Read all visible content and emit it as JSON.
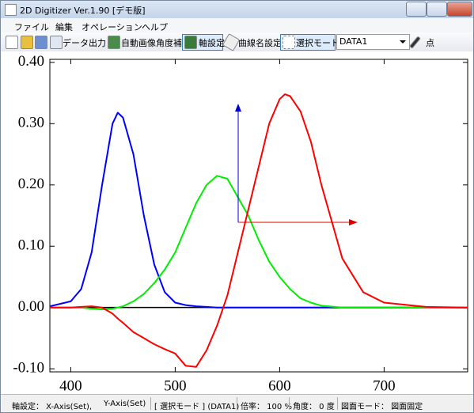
{
  "window": {
    "title": "2D Digitizer Ver.1.90 [デモ版]"
  },
  "menu": [
    "ファイル",
    "編集",
    "オペレーション",
    "ヘルプ"
  ],
  "toolbar": {
    "export": "データ出力",
    "auto_angle": "自動画像角度補正",
    "axis_setting": "軸設定",
    "curve_name": "曲線名設定",
    "select_mode": "選択モード",
    "dataset": "DATA1",
    "point": "点"
  },
  "status_bar": [
    "軸設定： X-Axis(Set),",
    "Y-Axis(Set)",
    "[ 選択モード ] (DATA1)",
    "倍率： 100 %",
    "角度： 0 度",
    "図面モード： 図面固定"
  ],
  "chart_data": {
    "type": "line",
    "x": [
      380,
      400,
      410,
      420,
      430,
      440,
      445,
      450,
      460,
      470,
      480,
      490,
      500,
      510,
      520,
      530,
      540,
      550,
      560,
      570,
      580,
      590,
      600,
      605,
      610,
      620,
      630,
      640,
      660,
      680,
      700,
      740,
      780
    ],
    "series": [
      {
        "color": "#0000ff",
        "values": [
          0.002,
          0.01,
          0.03,
          0.09,
          0.2,
          0.3,
          0.318,
          0.31,
          0.25,
          0.15,
          0.07,
          0.025,
          0.008,
          0.004,
          0.002,
          0.001,
          0,
          0,
          0,
          0,
          0,
          0,
          0,
          0,
          0,
          0,
          0,
          0,
          0,
          0,
          0,
          0,
          0
        ]
      },
      {
        "color": "#00ee00",
        "values": [
          0,
          0,
          0,
          -0.002,
          -0.003,
          -0.002,
          0,
          0.002,
          0.01,
          0.022,
          0.04,
          0.062,
          0.09,
          0.13,
          0.17,
          0.2,
          0.215,
          0.21,
          0.18,
          0.15,
          0.11,
          0.075,
          0.05,
          0.04,
          0.03,
          0.015,
          0.008,
          0.003,
          0,
          0,
          0,
          0,
          0
        ]
      },
      {
        "color": "#ff0000",
        "values": [
          0,
          0,
          0.001,
          0.002,
          0,
          -0.01,
          -0.018,
          -0.025,
          -0.04,
          -0.05,
          -0.06,
          -0.068,
          -0.075,
          -0.095,
          -0.097,
          -0.07,
          -0.03,
          0.02,
          0.09,
          0.16,
          0.23,
          0.3,
          0.34,
          0.348,
          0.345,
          0.32,
          0.27,
          0.2,
          0.08,
          0.025,
          0.008,
          0.001,
          0
        ]
      }
    ],
    "xlim": [
      380,
      780
    ],
    "xticks": [
      400,
      500,
      600,
      700
    ],
    "ylim": [
      -0.105,
      0.405
    ],
    "yticks": [
      {
        "value": 0.4,
        "label": "0.40"
      },
      {
        "value": 0.3,
        "label": "0.30"
      },
      {
        "value": 0.2,
        "label": "0.20"
      },
      {
        "value": 0.1,
        "label": "0.10"
      },
      {
        "value": 0,
        "label": "0.00"
      },
      {
        "value": -0.1,
        "label": "-0.10"
      }
    ]
  }
}
